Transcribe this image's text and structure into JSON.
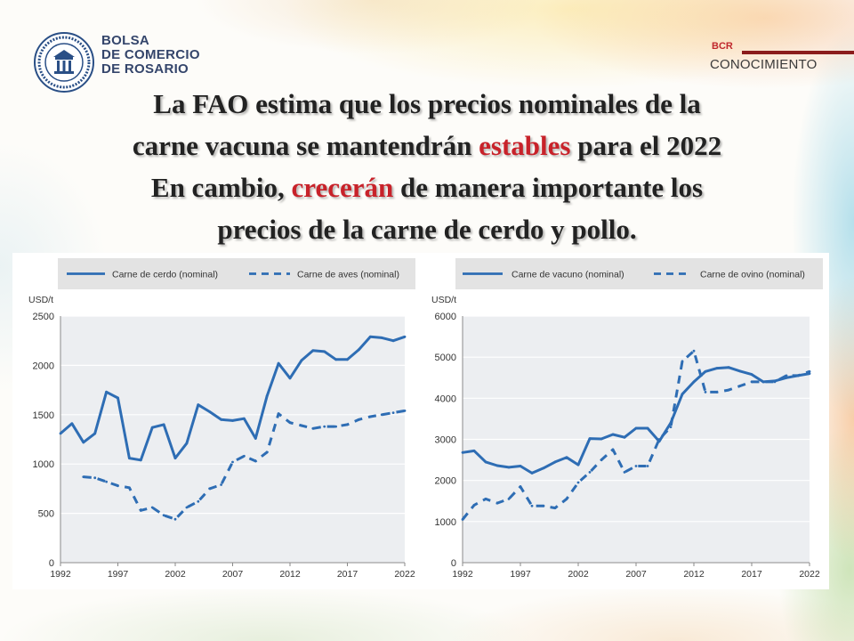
{
  "logo": {
    "lines": [
      "BOLSA",
      "DE COMERCIO",
      "DE ROSARIO"
    ]
  },
  "brand": {
    "prefix": "BCR",
    "name": "CONOCIMIENTO"
  },
  "title": {
    "line1": "La FAO estima que los precios nominales de la",
    "line2": {
      "a": "carne vacuna se mantendrán ",
      "b": "estables",
      "c": " para el 2022"
    },
    "line3": {
      "a": "En cambio, ",
      "b": "crecerán",
      "c": " de manera importante los"
    },
    "line4": "precios de la carne de cerdo y pollo."
  },
  "colors": {
    "accent": "#c8222a",
    "series": "#2e6db4",
    "brand_bar": "#8b1c1c"
  },
  "chart_data": [
    {
      "type": "line",
      "ylabel": "USD/t",
      "ylim": [
        0,
        2500
      ],
      "yticks": [
        0,
        500,
        1000,
        1500,
        2000,
        2500
      ],
      "xlim": [
        1992,
        2022
      ],
      "xticks": [
        1992,
        1997,
        2002,
        2007,
        2012,
        2017,
        2022
      ],
      "legend": "top",
      "grid": "horizontal",
      "x": [
        1992,
        1993,
        1994,
        1995,
        1996,
        1997,
        1998,
        1999,
        2000,
        2001,
        2002,
        2003,
        2004,
        2005,
        2006,
        2007,
        2008,
        2009,
        2010,
        2011,
        2012,
        2013,
        2014,
        2015,
        2016,
        2017,
        2018,
        2019,
        2020,
        2021,
        2022
      ],
      "series": [
        {
          "name": "Carne de cerdo (nominal)",
          "style": "solid",
          "values": [
            1310,
            1410,
            1220,
            1310,
            1730,
            1670,
            1060,
            1040,
            1370,
            1400,
            1060,
            1210,
            1600,
            1530,
            1450,
            1440,
            1460,
            1260,
            1690,
            2020,
            1870,
            2050,
            2150,
            2140,
            2060,
            2060,
            2160,
            2290,
            2280,
            2250,
            2290
          ]
        },
        {
          "name": "Carne de aves (nominal)",
          "style": "dashed",
          "values": [
            null,
            null,
            870,
            860,
            820,
            780,
            760,
            530,
            560,
            480,
            440,
            560,
            620,
            750,
            790,
            1020,
            1080,
            1030,
            1120,
            1510,
            1420,
            1390,
            1360,
            1380,
            1380,
            1400,
            1450,
            1480,
            1500,
            1520,
            1540
          ]
        }
      ]
    },
    {
      "type": "line",
      "ylabel": "USD/t",
      "ylim": [
        0,
        6000
      ],
      "yticks": [
        0,
        1000,
        2000,
        3000,
        4000,
        5000,
        6000
      ],
      "xlim": [
        1992,
        2022
      ],
      "xticks": [
        1992,
        1997,
        2002,
        2007,
        2012,
        2017,
        2022
      ],
      "legend": "top",
      "grid": "horizontal",
      "x": [
        1992,
        1993,
        1994,
        1995,
        1996,
        1997,
        1998,
        1999,
        2000,
        2001,
        2002,
        2003,
        2004,
        2005,
        2006,
        2007,
        2008,
        2009,
        2010,
        2011,
        2012,
        2013,
        2014,
        2015,
        2016,
        2017,
        2018,
        2019,
        2020,
        2021,
        2022
      ],
      "series": [
        {
          "name": "Carne de vacuno (nominal)",
          "style": "solid",
          "values": [
            2680,
            2720,
            2450,
            2360,
            2320,
            2350,
            2180,
            2300,
            2450,
            2560,
            2380,
            3020,
            3010,
            3120,
            3050,
            3270,
            3270,
            2950,
            3400,
            4100,
            4400,
            4650,
            4730,
            4750,
            4660,
            4580,
            4400,
            4420,
            4500,
            4550,
            4600
          ]
        },
        {
          "name": "Carne de ovino (nominal)",
          "style": "dashed",
          "values": [
            1050,
            1400,
            1550,
            1450,
            1550,
            1850,
            1380,
            1380,
            1330,
            1550,
            1950,
            2200,
            2500,
            2750,
            2200,
            2350,
            2350,
            3000,
            3300,
            4900,
            5150,
            4150,
            4150,
            4200,
            4300,
            4400,
            4400,
            4400,
            4550,
            4550,
            4650
          ]
        }
      ]
    }
  ]
}
